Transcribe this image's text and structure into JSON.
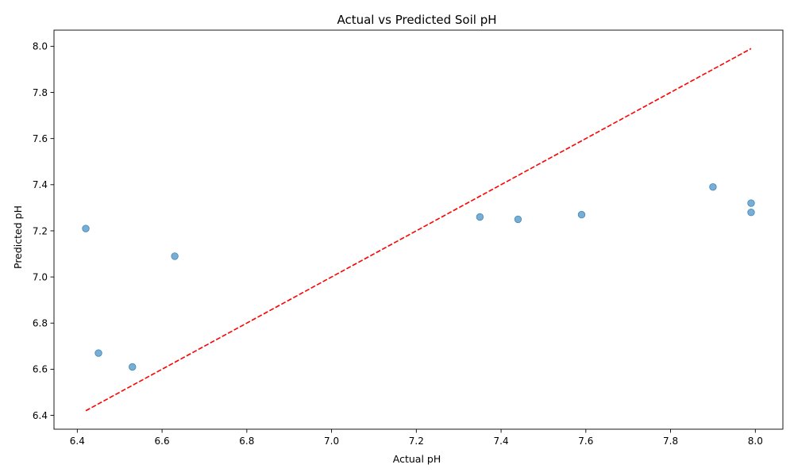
{
  "chart_data": {
    "type": "scatter",
    "title": "Actual vs Predicted Soil pH",
    "xlabel": "Actual pH",
    "ylabel": "Predicted pH",
    "xlim": [
      6.345,
      8.065
    ],
    "ylim": [
      6.34,
      8.07
    ],
    "xticks": [
      "6.4",
      "6.6",
      "6.8",
      "7.0",
      "7.2",
      "7.4",
      "7.6",
      "7.8",
      "8.0"
    ],
    "yticks": [
      "6.4",
      "6.6",
      "6.8",
      "7.0",
      "7.2",
      "7.4",
      "7.6",
      "7.8",
      "8.0"
    ],
    "points": [
      {
        "x": 6.42,
        "y": 7.21
      },
      {
        "x": 6.45,
        "y": 6.67
      },
      {
        "x": 6.53,
        "y": 6.61
      },
      {
        "x": 6.63,
        "y": 7.09
      },
      {
        "x": 7.35,
        "y": 7.26
      },
      {
        "x": 7.44,
        "y": 7.25
      },
      {
        "x": 7.59,
        "y": 7.27
      },
      {
        "x": 7.9,
        "y": 7.39
      },
      {
        "x": 7.99,
        "y": 7.32
      },
      {
        "x": 7.99,
        "y": 7.28
      }
    ],
    "reference_line": {
      "x": [
        6.42,
        7.99
      ],
      "y": [
        6.42,
        7.99
      ],
      "style": "dashed"
    },
    "grid": false,
    "colors": {
      "points": "#1f77b4",
      "reference_line": "#ff0000"
    }
  }
}
